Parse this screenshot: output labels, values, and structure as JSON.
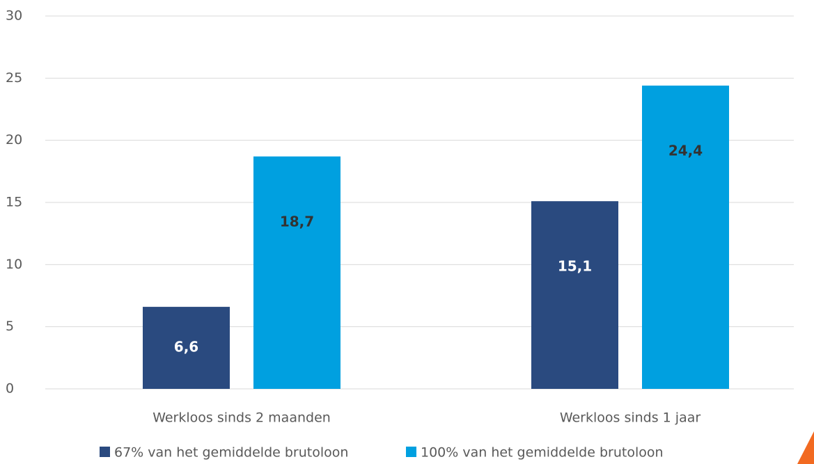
{
  "chart_data": {
    "type": "bar",
    "categories": [
      "Werkloos sinds 2 maanden",
      "Werkloos sinds 1 jaar"
    ],
    "series": [
      {
        "name": "67% van het gemiddelde brutoloon",
        "color": "#2a4a7f",
        "values": [
          6.6,
          15.1
        ],
        "value_labels": [
          "6,6",
          "15,1"
        ]
      },
      {
        "name": "100% van het gemiddelde brutoloon",
        "color": "#00a0e0",
        "values": [
          18.7,
          24.4
        ],
        "value_labels": [
          "18,7",
          "24,4"
        ]
      }
    ],
    "ylim": [
      0,
      30
    ],
    "yticks": [
      0,
      5,
      10,
      15,
      20,
      25,
      30
    ],
    "grid": true
  }
}
